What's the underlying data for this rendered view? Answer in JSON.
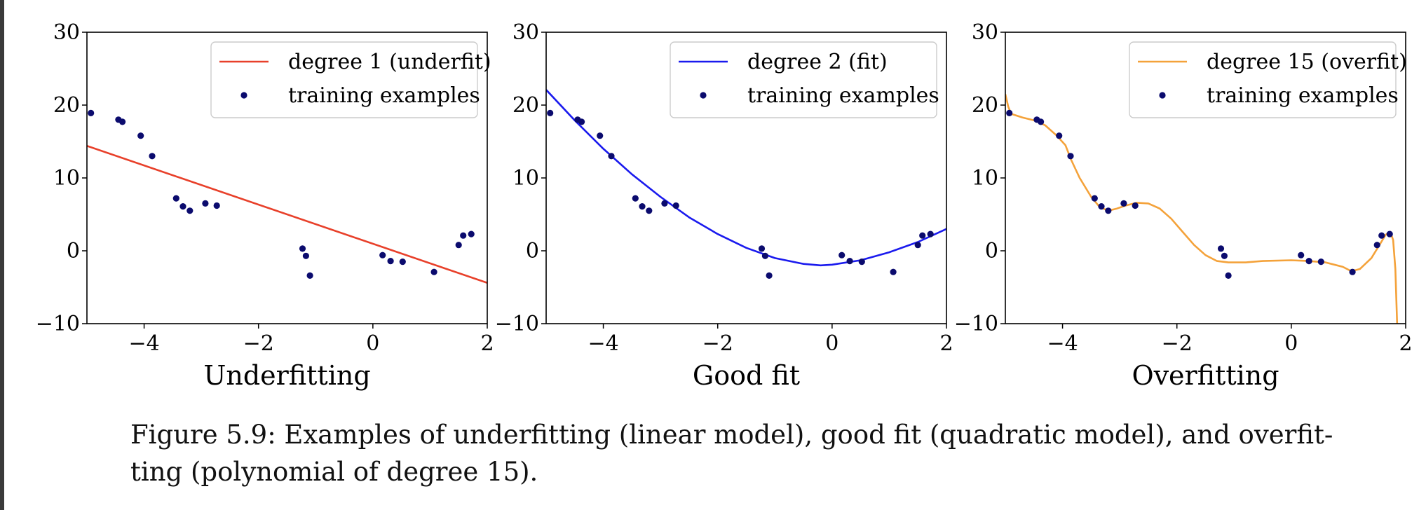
{
  "caption": "Figure 5.9: Examples of underfitting (linear model), good fit (quadratic model), and overfit- ting (polynomial of degree 15).",
  "chart_data": [
    {
      "type": "scatter",
      "title": "Underfitting",
      "xlim": [
        -5,
        2
      ],
      "ylim": [
        -10,
        30
      ],
      "xticks": [
        -4,
        -2,
        0,
        2
      ],
      "yticks": [
        -10,
        0,
        10,
        20,
        30
      ],
      "xtick_labels": [
        "−4",
        "−2",
        "0",
        "2"
      ],
      "ytick_labels": [
        "−10",
        "0",
        "10",
        "20",
        "30"
      ],
      "legend_position": "top-right",
      "color_fit": "#e8402a",
      "color_points": "#0b0b6e",
      "series": [
        {
          "name": "degree 1 (underfit)",
          "kind": "line",
          "x": [
            -5,
            2
          ],
          "y": [
            14.4,
            -4.4
          ]
        },
        {
          "name": "training examples",
          "kind": "scatter",
          "x": [
            -4.93,
            -4.45,
            -4.38,
            -4.06,
            -3.86,
            -3.44,
            -3.32,
            -3.2,
            -2.93,
            -2.73,
            -1.23,
            -1.17,
            -1.1,
            0.17,
            0.31,
            0.52,
            1.07,
            1.5,
            1.58,
            1.72
          ],
          "y": [
            18.9,
            18.0,
            17.7,
            15.8,
            13.0,
            7.2,
            6.1,
            5.5,
            6.5,
            6.2,
            0.3,
            -0.7,
            -3.4,
            -0.6,
            -1.4,
            -1.5,
            -2.9,
            0.8,
            2.1,
            2.3
          ]
        }
      ]
    },
    {
      "type": "scatter",
      "title": "Good fit",
      "xlim": [
        -5,
        2
      ],
      "ylim": [
        -10,
        30
      ],
      "xticks": [
        -4,
        -2,
        0,
        2
      ],
      "yticks": [
        -10,
        0,
        10,
        20,
        30
      ],
      "xtick_labels": [
        "−4",
        "−2",
        "0",
        "2"
      ],
      "ytick_labels": [
        "−10",
        "0",
        "10",
        "20",
        "30"
      ],
      "legend_position": "top-right",
      "color_fit": "#1a1aee",
      "color_points": "#0b0b6e",
      "series": [
        {
          "name": "degree 2 (fit)",
          "kind": "line",
          "x": [
            -5,
            -4.5,
            -4,
            -3.5,
            -3,
            -2.5,
            -2,
            -1.5,
            -1,
            -0.5,
            -0.2,
            0,
            0.5,
            1,
            1.5,
            2
          ],
          "y": [
            22.1,
            17.9,
            14.0,
            10.5,
            7.4,
            4.6,
            2.3,
            0.4,
            -1.0,
            -1.8,
            -2.0,
            -1.9,
            -1.3,
            -0.2,
            1.2,
            3.0
          ]
        },
        {
          "name": "training examples",
          "kind": "scatter",
          "x": [
            -4.93,
            -4.45,
            -4.38,
            -4.06,
            -3.86,
            -3.44,
            -3.32,
            -3.2,
            -2.93,
            -2.73,
            -1.23,
            -1.17,
            -1.1,
            0.17,
            0.31,
            0.52,
            1.07,
            1.5,
            1.58,
            1.72
          ],
          "y": [
            18.9,
            18.0,
            17.7,
            15.8,
            13.0,
            7.2,
            6.1,
            5.5,
            6.5,
            6.2,
            0.3,
            -0.7,
            -3.4,
            -0.6,
            -1.4,
            -1.5,
            -2.9,
            0.8,
            2.1,
            2.3
          ]
        }
      ]
    },
    {
      "type": "scatter",
      "title": "Overfitting",
      "xlim": [
        -5,
        2
      ],
      "ylim": [
        -10,
        30
      ],
      "xticks": [
        -4,
        -2,
        0,
        2
      ],
      "yticks": [
        -10,
        0,
        10,
        20,
        30
      ],
      "xtick_labels": [
        "−4",
        "−2",
        "0",
        "2"
      ],
      "ytick_labels": [
        "−10",
        "0",
        "10",
        "20",
        "30"
      ],
      "legend_position": "top-right",
      "color_fit": "#f4a23a",
      "color_points": "#0b0b6e",
      "series": [
        {
          "name": "degree 15 (overfit)",
          "kind": "line",
          "x": [
            -5,
            -4.95,
            -4.9,
            -4.7,
            -4.5,
            -4.4,
            -4.3,
            -4.1,
            -3.95,
            -3.85,
            -3.7,
            -3.5,
            -3.35,
            -3.2,
            -3.05,
            -2.9,
            -2.7,
            -2.5,
            -2.3,
            -2.1,
            -1.9,
            -1.7,
            -1.5,
            -1.3,
            -1.1,
            -0.8,
            -0.5,
            0,
            0.3,
            0.6,
            0.9,
            1.05,
            1.2,
            1.4,
            1.55,
            1.65,
            1.73,
            1.78,
            1.82,
            1.85
          ],
          "y": [
            21.5,
            19.8,
            18.8,
            18.3,
            17.9,
            17.6,
            17.2,
            15.8,
            14.5,
            12.5,
            10.0,
            7.4,
            6.0,
            5.5,
            5.8,
            6.2,
            6.6,
            6.5,
            5.8,
            4.4,
            2.6,
            0.8,
            -0.6,
            -1.4,
            -1.6,
            -1.6,
            -1.4,
            -1.3,
            -1.4,
            -1.6,
            -2.2,
            -2.8,
            -2.5,
            -1.0,
            0.9,
            2.2,
            2.6,
            1.5,
            -2.5,
            -10
          ]
        },
        {
          "name": "training examples",
          "kind": "scatter",
          "x": [
            -4.93,
            -4.45,
            -4.38,
            -4.06,
            -3.86,
            -3.44,
            -3.32,
            -3.2,
            -2.93,
            -2.73,
            -1.23,
            -1.17,
            -1.1,
            0.17,
            0.31,
            0.52,
            1.07,
            1.5,
            1.58,
            1.72
          ],
          "y": [
            18.9,
            18.0,
            17.7,
            15.8,
            13.0,
            7.2,
            6.1,
            5.5,
            6.5,
            6.2,
            0.3,
            -0.7,
            -3.4,
            -0.6,
            -1.4,
            -1.5,
            -2.9,
            0.8,
            2.1,
            2.3
          ]
        }
      ]
    }
  ]
}
